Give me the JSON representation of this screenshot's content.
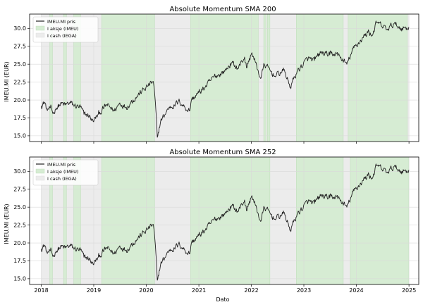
{
  "chart_data": [
    {
      "type": "line",
      "title": "Absolute Momentum SMA 200",
      "xlabel": "",
      "ylabel": "IMEU.MI (EUR)",
      "xlim": [
        "2017-10-12",
        "2025-03-10"
      ],
      "ylim": [
        14.2,
        32.0
      ],
      "x_ticks": [
        "2018",
        "2019",
        "2020",
        "2021",
        "2022",
        "2023",
        "2024",
        "2025"
      ],
      "y_ticks": [
        15.0,
        17.5,
        20.0,
        22.5,
        25.0,
        27.5,
        30.0
      ],
      "grid": true,
      "legend_position": "top-left",
      "legend": [
        {
          "label": "IMEU.MI pris",
          "color": "#222222",
          "kind": "line"
        },
        {
          "label": "I aksje (IMEU)",
          "color": "#d6ecd3",
          "kind": "patch"
        },
        {
          "label": "I cash (IEGA)",
          "color": "#ececec",
          "kind": "patch"
        }
      ],
      "price_points": [
        [
          "2018-01-01",
          19.2
        ],
        [
          "2018-01-25",
          19.7
        ],
        [
          "2018-02-10",
          18.6
        ],
        [
          "2018-03-05",
          18.9
        ],
        [
          "2018-03-25",
          18.1
        ],
        [
          "2018-04-15",
          18.9
        ],
        [
          "2018-05-20",
          19.5
        ],
        [
          "2018-06-15",
          19.3
        ],
        [
          "2018-07-20",
          19.6
        ],
        [
          "2018-08-20",
          19.2
        ],
        [
          "2018-10-01",
          19.0
        ],
        [
          "2018-10-25",
          18.0
        ],
        [
          "2018-12-01",
          17.8
        ],
        [
          "2018-12-28",
          17.0
        ],
        [
          "2019-02-01",
          18.0
        ],
        [
          "2019-04-01",
          19.3
        ],
        [
          "2019-05-25",
          18.5
        ],
        [
          "2019-07-01",
          19.6
        ],
        [
          "2019-08-15",
          19.0
        ],
        [
          "2019-10-01",
          20.0
        ],
        [
          "2019-12-01",
          21.2
        ],
        [
          "2020-01-15",
          22.0
        ],
        [
          "2020-02-19",
          22.6
        ],
        [
          "2020-03-01",
          20.5
        ],
        [
          "2020-03-18",
          14.8
        ],
        [
          "2020-04-10",
          17.0
        ],
        [
          "2020-06-08",
          19.0
        ],
        [
          "2020-07-15",
          19.3
        ],
        [
          "2020-08-20",
          19.8
        ],
        [
          "2020-09-25",
          19.0
        ],
        [
          "2020-10-30",
          18.5
        ],
        [
          "2020-11-10",
          20.0
        ],
        [
          "2020-12-31",
          21.0
        ],
        [
          "2021-02-15",
          21.8
        ],
        [
          "2021-04-15",
          23.2
        ],
        [
          "2021-06-30",
          24.0
        ],
        [
          "2021-08-15",
          25.2
        ],
        [
          "2021-09-30",
          24.4
        ],
        [
          "2021-11-15",
          26.0
        ],
        [
          "2021-11-28",
          24.5
        ],
        [
          "2022-01-05",
          26.6
        ],
        [
          "2022-03-07",
          23.0
        ],
        [
          "2022-04-01",
          25.0
        ],
        [
          "2022-06-15",
          23.3
        ],
        [
          "2022-08-15",
          24.2
        ],
        [
          "2022-09-29",
          21.8
        ],
        [
          "2022-11-15",
          24.0
        ],
        [
          "2023-01-31",
          25.8
        ],
        [
          "2023-03-15",
          25.5
        ],
        [
          "2023-04-28",
          26.6
        ],
        [
          "2023-06-30",
          26.3
        ],
        [
          "2023-08-15",
          26.5
        ],
        [
          "2023-10-27",
          25.0
        ],
        [
          "2023-12-15",
          27.3
        ],
        [
          "2024-03-28",
          29.6
        ],
        [
          "2024-04-20",
          29.0
        ],
        [
          "2024-05-20",
          30.8
        ],
        [
          "2024-08-05",
          29.8
        ],
        [
          "2024-09-15",
          30.6
        ],
        [
          "2024-11-15",
          30.0
        ],
        [
          "2024-12-31",
          30.2
        ]
      ],
      "in_stock_periods": [
        [
          "2018-03-01",
          "2018-03-20"
        ],
        [
          "2018-06-05",
          "2018-06-25"
        ],
        [
          "2018-08-15",
          "2018-10-02"
        ],
        [
          "2019-02-25",
          "2020-02-28"
        ],
        [
          "2020-11-05",
          "2022-02-18"
        ],
        [
          "2022-03-28",
          "2022-04-12"
        ],
        [
          "2022-04-22",
          "2022-05-10"
        ],
        [
          "2022-11-10",
          "2023-10-02"
        ],
        [
          "2023-11-05",
          "2024-12-20"
        ]
      ]
    },
    {
      "type": "line",
      "title": "Absolute Momentum SMA 252",
      "xlabel": "Dato",
      "ylabel": "IMEU.MI (EUR)",
      "xlim": [
        "2017-10-12",
        "2025-03-10"
      ],
      "ylim": [
        14.2,
        32.0
      ],
      "x_ticks": [
        "2018",
        "2019",
        "2020",
        "2021",
        "2022",
        "2023",
        "2024",
        "2025"
      ],
      "y_ticks": [
        15.0,
        17.5,
        20.0,
        22.5,
        25.0,
        27.5,
        30.0
      ],
      "grid": true,
      "legend_position": "top-left",
      "legend": [
        {
          "label": "IMEU.MI pris",
          "color": "#222222",
          "kind": "line"
        },
        {
          "label": "I aksje (IMEU)",
          "color": "#d6ecd3",
          "kind": "patch"
        },
        {
          "label": "I cash (IEGA)",
          "color": "#ececec",
          "kind": "patch"
        }
      ],
      "price_points": [
        [
          "2018-01-01",
          19.2
        ],
        [
          "2018-01-25",
          19.7
        ],
        [
          "2018-02-10",
          18.6
        ],
        [
          "2018-03-05",
          18.9
        ],
        [
          "2018-03-25",
          18.1
        ],
        [
          "2018-04-15",
          18.9
        ],
        [
          "2018-05-20",
          19.5
        ],
        [
          "2018-06-15",
          19.3
        ],
        [
          "2018-07-20",
          19.6
        ],
        [
          "2018-08-20",
          19.2
        ],
        [
          "2018-10-01",
          19.0
        ],
        [
          "2018-10-25",
          18.0
        ],
        [
          "2018-12-01",
          17.8
        ],
        [
          "2018-12-28",
          17.0
        ],
        [
          "2019-02-01",
          18.0
        ],
        [
          "2019-04-01",
          19.3
        ],
        [
          "2019-05-25",
          18.5
        ],
        [
          "2019-07-01",
          19.6
        ],
        [
          "2019-08-15",
          19.0
        ],
        [
          "2019-10-01",
          20.0
        ],
        [
          "2019-12-01",
          21.2
        ],
        [
          "2020-01-15",
          22.0
        ],
        [
          "2020-02-19",
          22.6
        ],
        [
          "2020-03-01",
          20.5
        ],
        [
          "2020-03-18",
          14.8
        ],
        [
          "2020-04-10",
          17.0
        ],
        [
          "2020-06-08",
          19.0
        ],
        [
          "2020-07-15",
          19.3
        ],
        [
          "2020-08-20",
          19.8
        ],
        [
          "2020-09-25",
          19.0
        ],
        [
          "2020-10-30",
          18.5
        ],
        [
          "2020-11-10",
          20.0
        ],
        [
          "2020-12-31",
          21.0
        ],
        [
          "2021-02-15",
          21.8
        ],
        [
          "2021-04-15",
          23.2
        ],
        [
          "2021-06-30",
          24.0
        ],
        [
          "2021-08-15",
          25.2
        ],
        [
          "2021-09-30",
          24.4
        ],
        [
          "2021-11-15",
          26.0
        ],
        [
          "2021-11-28",
          24.5
        ],
        [
          "2022-01-05",
          26.6
        ],
        [
          "2022-03-07",
          23.0
        ],
        [
          "2022-04-01",
          25.0
        ],
        [
          "2022-06-15",
          23.3
        ],
        [
          "2022-08-15",
          24.2
        ],
        [
          "2022-09-29",
          21.8
        ],
        [
          "2022-11-15",
          24.0
        ],
        [
          "2023-01-31",
          25.8
        ],
        [
          "2023-03-15",
          25.5
        ],
        [
          "2023-04-28",
          26.6
        ],
        [
          "2023-06-30",
          26.3
        ],
        [
          "2023-08-15",
          26.5
        ],
        [
          "2023-10-27",
          25.0
        ],
        [
          "2023-12-15",
          27.3
        ],
        [
          "2024-03-28",
          29.6
        ],
        [
          "2024-04-20",
          29.0
        ],
        [
          "2024-05-20",
          30.8
        ],
        [
          "2024-08-05",
          29.8
        ],
        [
          "2024-09-15",
          30.6
        ],
        [
          "2024-11-15",
          30.0
        ],
        [
          "2024-12-31",
          30.2
        ]
      ],
      "in_stock_periods": [
        [
          "2018-03-01",
          "2018-03-20"
        ],
        [
          "2018-06-05",
          "2018-06-25"
        ],
        [
          "2018-08-15",
          "2018-10-02"
        ],
        [
          "2019-02-25",
          "2020-02-28"
        ],
        [
          "2020-11-05",
          "2022-05-10"
        ],
        [
          "2022-11-10",
          "2023-10-02"
        ],
        [
          "2023-11-20",
          "2024-12-31"
        ]
      ]
    }
  ]
}
